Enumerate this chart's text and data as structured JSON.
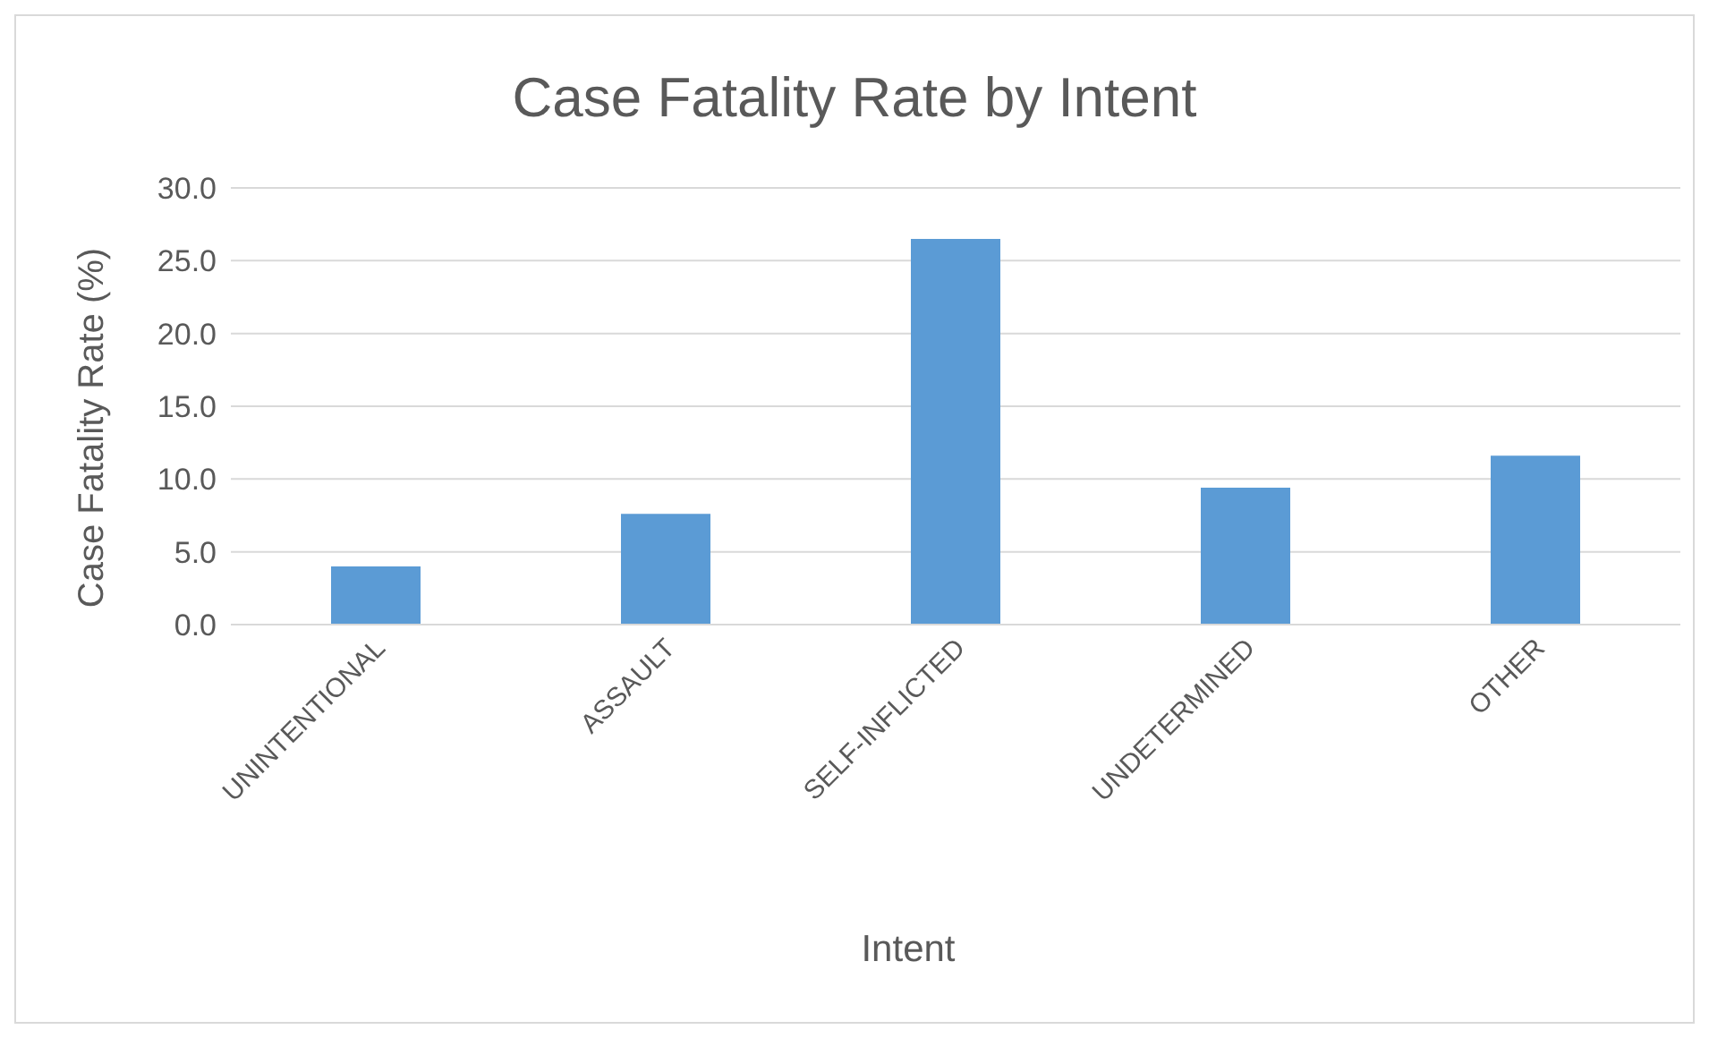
{
  "chart_data": {
    "type": "bar",
    "title": "Case Fatality Rate by Intent",
    "xlabel": "Intent",
    "ylabel": "Case Fatality Rate (%)",
    "categories": [
      "UNINTENTIONAL",
      "ASSAULT",
      "SELF-INFLICTED",
      "UNDETERMINED",
      "OTHER"
    ],
    "values": [
      4.0,
      7.6,
      26.5,
      9.4,
      11.6
    ],
    "color": "#5b9bd5",
    "ylim": [
      0,
      30
    ],
    "yticks": [
      {
        "value": 0,
        "label": "0.0"
      },
      {
        "value": 5,
        "label": "5.0"
      },
      {
        "value": 10,
        "label": "10.0"
      },
      {
        "value": 15,
        "label": "15.0"
      },
      {
        "value": 20,
        "label": "20.0"
      },
      {
        "value": 25,
        "label": "25.0"
      },
      {
        "value": 30,
        "label": "30.0"
      }
    ],
    "grid": "y",
    "legend": false
  }
}
